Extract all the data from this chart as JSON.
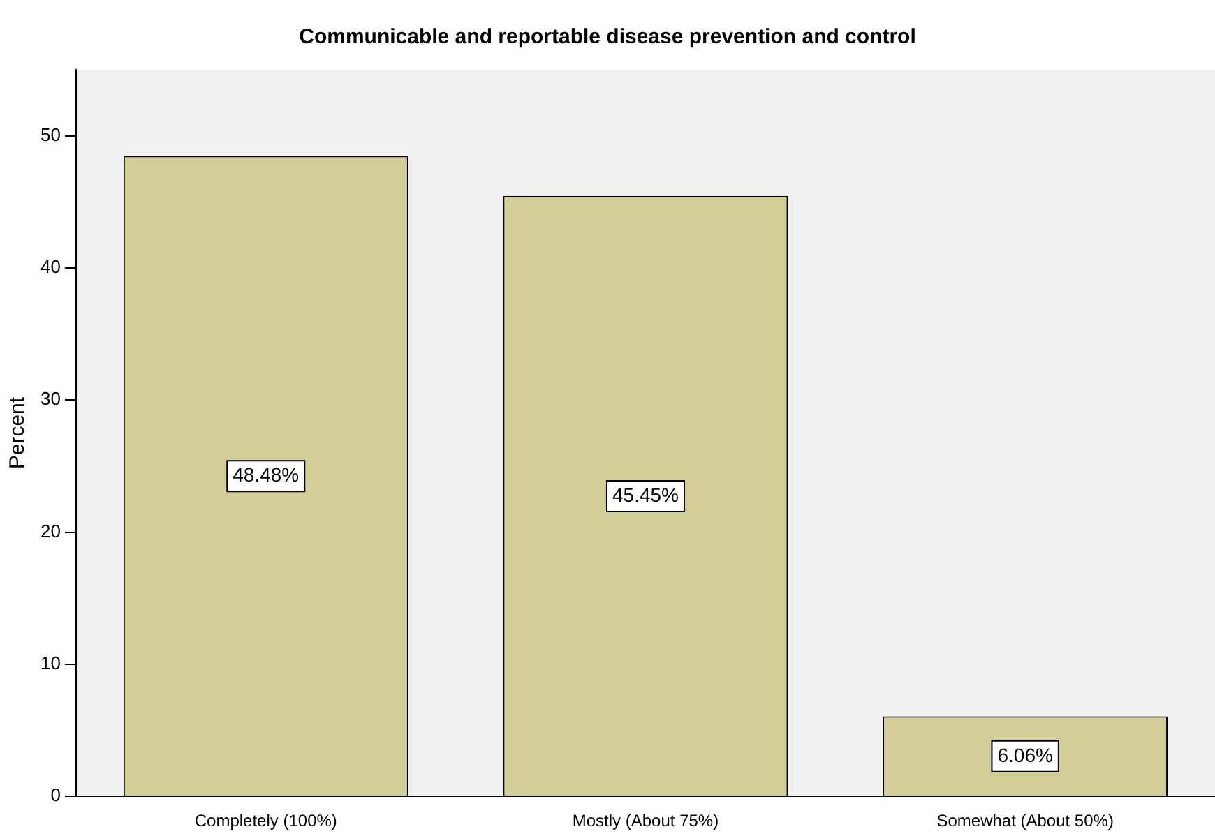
{
  "chart_data": {
    "type": "bar",
    "title": "Communicable and reportable disease prevention and control",
    "ylabel": "Percent",
    "categories": [
      "Completely (100%)",
      "Mostly (About 75%)",
      "Somewhat (About 50%)"
    ],
    "values": [
      48.48,
      45.45,
      6.06
    ],
    "value_labels": [
      "48.48%",
      "45.45%",
      "6.06%"
    ],
    "color": "#d3ce97",
    "ylim": [
      0,
      55
    ],
    "yticks": [
      0,
      10,
      20,
      30,
      40,
      50
    ],
    "grid": false,
    "legend": false
  }
}
